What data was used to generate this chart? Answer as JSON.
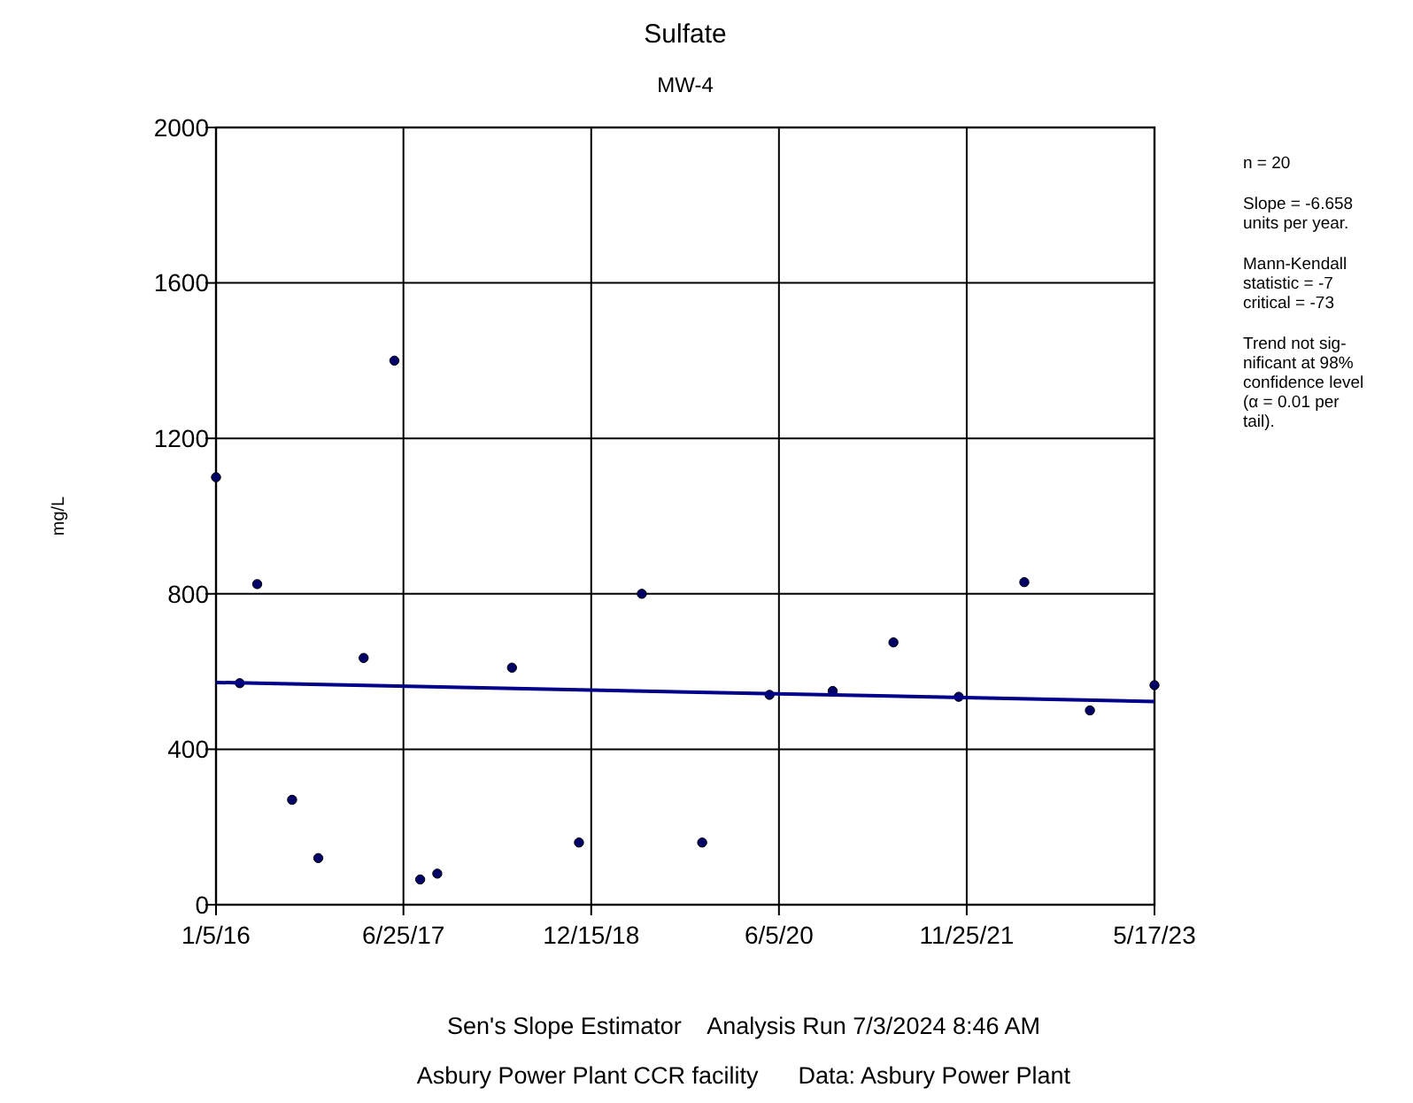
{
  "chart_data": {
    "type": "scatter",
    "title": "Sulfate",
    "subtitle": "MW-4",
    "ylabel": "mg/L",
    "x": [
      "2016-01-05",
      "2016-03-13",
      "2016-05-02",
      "2016-08-10",
      "2016-10-24",
      "2017-03-03",
      "2017-05-30",
      "2017-08-12",
      "2017-09-30",
      "2018-05-02",
      "2018-11-10",
      "2019-05-09",
      "2019-10-29",
      "2020-05-09",
      "2020-11-06",
      "2021-04-29",
      "2021-11-02",
      "2022-05-09",
      "2022-11-13",
      "2023-05-17"
    ],
    "series": [
      {
        "color": "#000066",
        "marker": "circle",
        "values": [
          1100,
          570,
          825,
          270,
          120,
          635,
          1400,
          65,
          80,
          610,
          160,
          800,
          160,
          540,
          550,
          675,
          535,
          830,
          500,
          565
        ]
      },
      {
        "type": "line",
        "color": "#00008b",
        "marker": "none",
        "line_style": "solid",
        "x": [
          "2016-01-05",
          "2023-05-17"
        ],
        "values": [
          572,
          523
        ]
      }
    ],
    "xlim": [
      "2016-01-05",
      "2023-05-17"
    ],
    "xticks": [
      {
        "value": "2016-01-05",
        "label": "1/5/16"
      },
      {
        "value": "2017-06-25",
        "label": "6/25/17"
      },
      {
        "value": "2018-12-15",
        "label": "12/15/18"
      },
      {
        "value": "2020-06-05",
        "label": "6/5/20"
      },
      {
        "value": "2021-11-25",
        "label": "11/25/21"
      },
      {
        "value": "2023-05-17",
        "label": "5/17/23"
      }
    ],
    "ylim": [
      0,
      2000
    ],
    "yticks": [
      0,
      400,
      800,
      1200,
      1600,
      2000
    ],
    "grid": true,
    "annotations": [
      "n = 20",
      "Slope = -6.658\nunits per year.",
      "Mann-Kendall\nstatistic = -7\ncritical = -73",
      "Trend not sig-\nnificant at 98%\nconfidence level\n(α = 0.01 per\ntail).",
      "Sen's Slope Estimator    Analysis Run 7/3/2024 8:46 AM",
      "Asbury Power Plant CCR facility      Data: Asbury Power Plant"
    ]
  }
}
